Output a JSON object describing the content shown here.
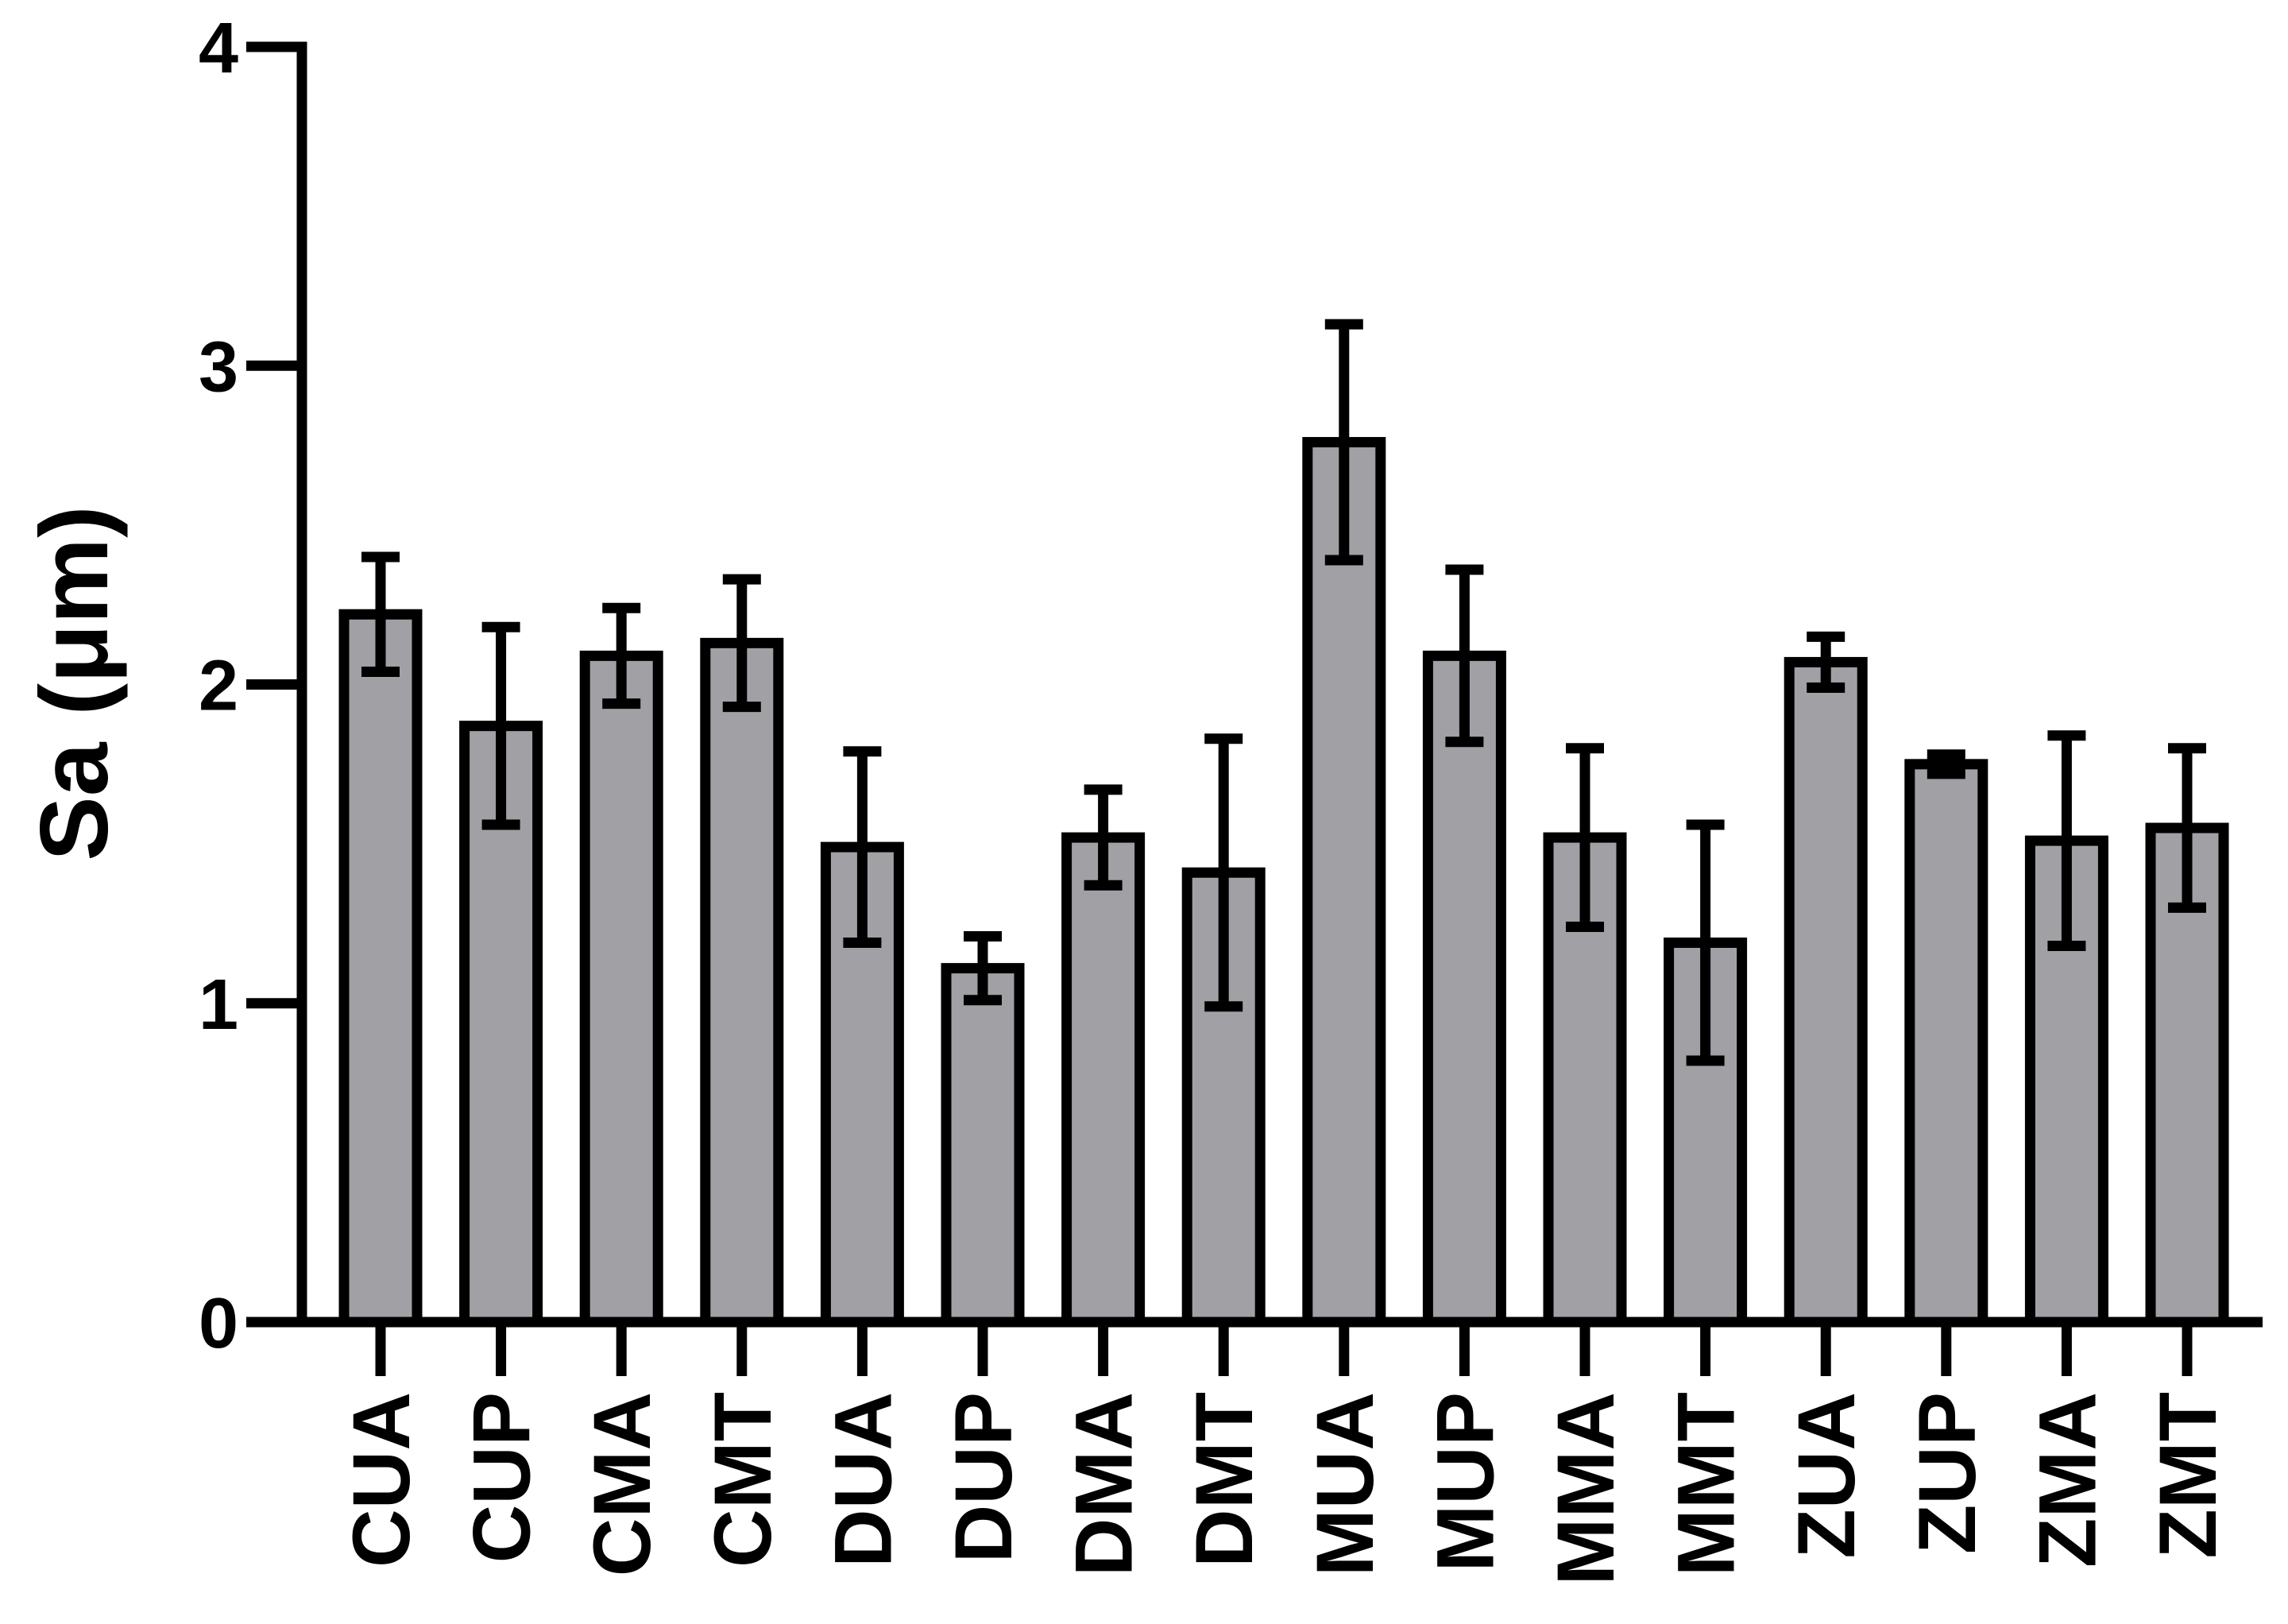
{
  "chart_data": {
    "type": "bar",
    "y_label": "Sa (μm)",
    "categories": [
      "CUA",
      "CUP",
      "CMA",
      "CMT",
      "DUA",
      "DUP",
      "DMA",
      "DMT",
      "MUA",
      "MUP",
      "MMA",
      "MMT",
      "ZUA",
      "ZUP",
      "ZMA",
      "ZMT"
    ],
    "values": [
      2.22,
      1.87,
      2.09,
      2.13,
      1.49,
      1.11,
      1.52,
      1.41,
      2.76,
      2.09,
      1.52,
      1.19,
      2.07,
      1.75,
      1.51,
      1.55
    ],
    "errors": [
      0.18,
      0.31,
      0.15,
      0.2,
      0.3,
      0.1,
      0.15,
      0.42,
      0.37,
      0.27,
      0.28,
      0.37,
      0.08,
      0.03,
      0.33,
      0.25
    ],
    "color": "#a0a0a5",
    "ylim": [
      0,
      4
    ],
    "yticks": [
      0,
      1,
      2,
      3,
      4
    ]
  }
}
